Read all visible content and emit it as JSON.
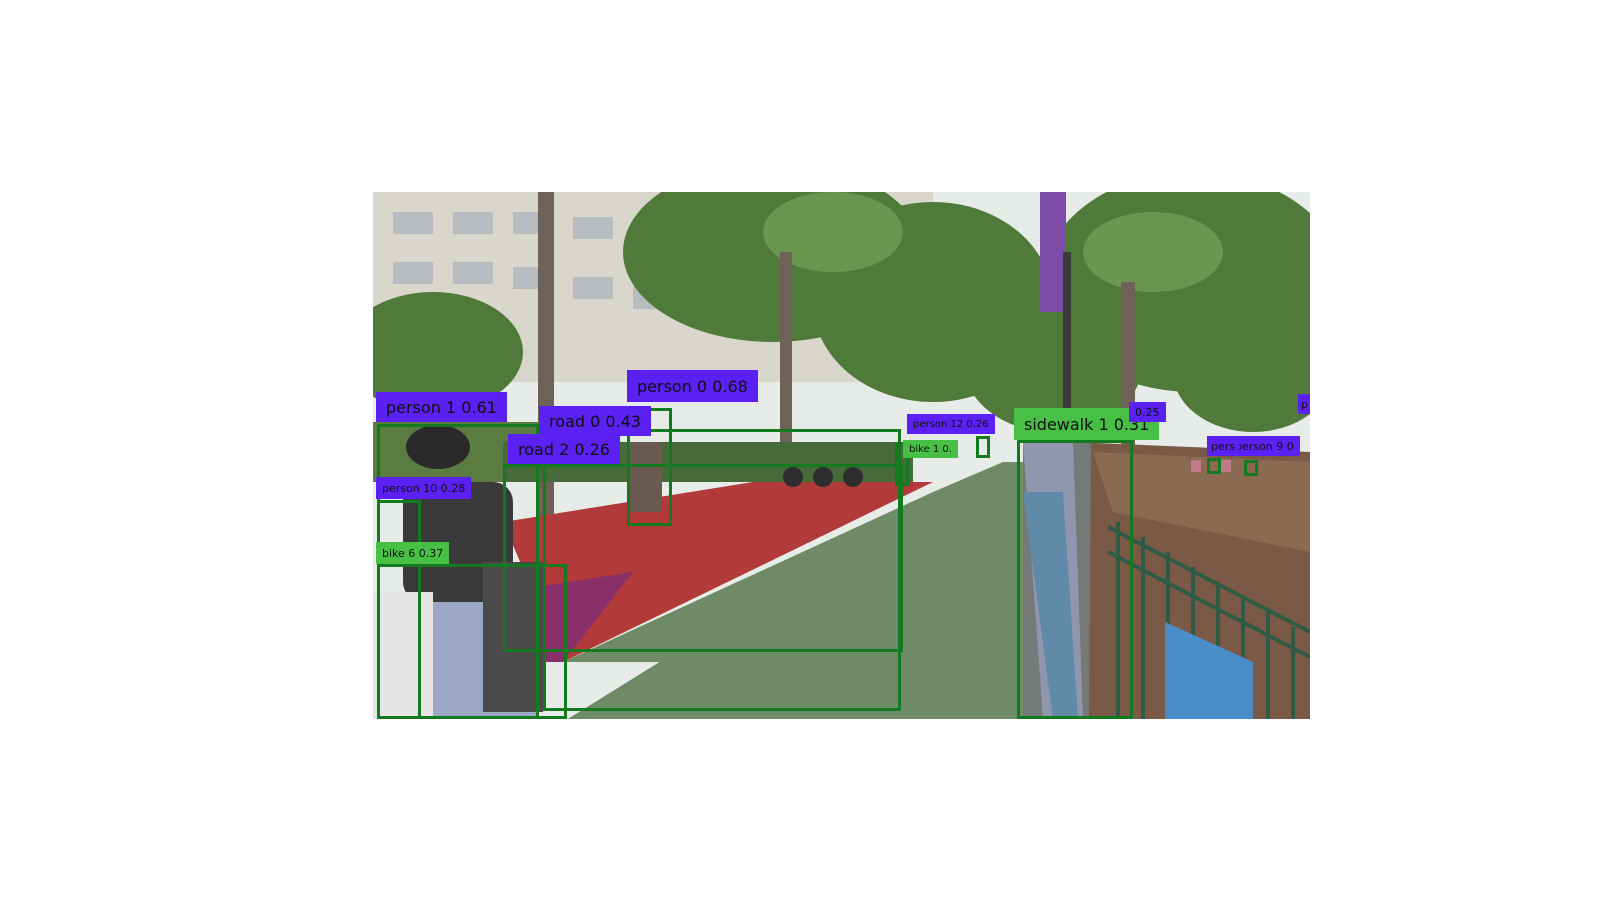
{
  "detections": [
    {
      "class": "person",
      "id": "1",
      "score": "0.61",
      "text": "person  1  0.61",
      "color": "#5b21f2"
    },
    {
      "class": "person",
      "id": "0",
      "score": "0.68",
      "text": "person  0  0.68",
      "color": "#5b21f2"
    },
    {
      "class": "road",
      "id": "0",
      "score": "0.43",
      "text": "road  0  0.43",
      "color": "#5b21f2"
    },
    {
      "class": "road",
      "id": "2",
      "score": "0.26",
      "text": "road  2  0.26",
      "color": "#5b21f2"
    },
    {
      "class": "person",
      "id": "10",
      "score": "0.28",
      "text": "person 10 0.28",
      "color": "#5b21f2"
    },
    {
      "class": "bike",
      "id": "6",
      "score": "0.37",
      "text": "bike 6 0.37",
      "color": "#48c045"
    },
    {
      "class": "person",
      "id": "12",
      "score": "0.26",
      "text": "person 12 0.26",
      "color": "#5b21f2"
    },
    {
      "class": "bike",
      "id": "1",
      "score": "",
      "text": "bike 1  0.",
      "color": "#48c045"
    },
    {
      "class": "sidewalk",
      "id": "1",
      "score": "0.31",
      "text": "sidewalk  1  0.31",
      "color": "#48c045"
    },
    {
      "class": "",
      "id": "",
      "score": "0.25",
      "text": "0.25",
      "color": "#5b21f2"
    },
    {
      "class": "person",
      "id": "9",
      "score": "",
      "text": "person 9 0",
      "color": "#5b21f2"
    },
    {
      "class": "person",
      "id": "",
      "score": "",
      "text": "pers",
      "color": "#5b21f2"
    },
    {
      "class": "",
      "id": "",
      "score": "",
      "text": "p",
      "color": "#5b21f2"
    }
  ],
  "colors": {
    "box_border": "#137a1f",
    "person_label": "#5b21f2",
    "surface_label": "#48c045",
    "road_mask": "#6f8a66",
    "bike_lane": "#b23a3a",
    "sidewalk_mask": "#7a8090"
  }
}
